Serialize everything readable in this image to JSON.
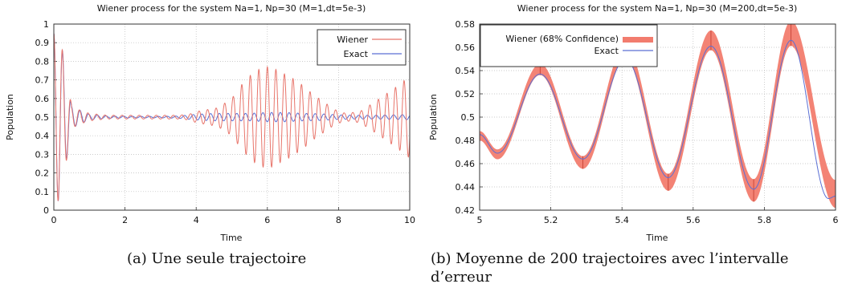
{
  "figure": {
    "caption_a": "(a) Une seule trajectoire",
    "caption_b": "(b) Moyenne de 200 trajectoires avec l’intervalle d’erreur"
  },
  "colors": {
    "wiener": "#e8746a",
    "exact": "#5b6fd4",
    "band": "#f27c6e"
  },
  "chart_data": [
    {
      "type": "line",
      "title": "Wiener process for the system Na=1, Np=30   (M=1,dt=5e-3)",
      "xlabel": "Time",
      "ylabel": "Population",
      "xlim": [
        0,
        10
      ],
      "ylim": [
        0,
        1
      ],
      "xticks": [
        0,
        2,
        4,
        6,
        8,
        10
      ],
      "yticks": [
        0,
        0.1,
        0.2,
        0.3,
        0.4,
        0.5,
        0.6,
        0.7,
        0.8,
        0.9,
        1
      ],
      "grid": true,
      "legend_position": "top-right",
      "series": [
        {
          "name": "Wiener",
          "color": "#e8746a",
          "envelope_points": [
            [
              0.0,
              0.45
            ],
            [
              0.15,
              0.45
            ],
            [
              0.3,
              0.3
            ],
            [
              0.5,
              0.06
            ],
            [
              0.7,
              0.04
            ],
            [
              1.0,
              0.02
            ],
            [
              1.5,
              0.01
            ],
            [
              2.0,
              0.01
            ],
            [
              2.5,
              0.01
            ],
            [
              3.0,
              0.01
            ],
            [
              3.5,
              0.01
            ],
            [
              3.8,
              0.015
            ],
            [
              4.0,
              0.03
            ],
            [
              4.3,
              0.04
            ],
            [
              4.6,
              0.05
            ],
            [
              5.0,
              0.1
            ],
            [
              5.3,
              0.18
            ],
            [
              5.6,
              0.24
            ],
            [
              5.9,
              0.27
            ],
            [
              6.1,
              0.27
            ],
            [
              6.4,
              0.24
            ],
            [
              6.7,
              0.21
            ],
            [
              7.0,
              0.17
            ],
            [
              7.3,
              0.12
            ],
            [
              7.6,
              0.08
            ],
            [
              7.9,
              0.04
            ],
            [
              8.2,
              0.02
            ],
            [
              8.6,
              0.03
            ],
            [
              9.0,
              0.08
            ],
            [
              9.3,
              0.12
            ],
            [
              9.6,
              0.16
            ],
            [
              10.0,
              0.22
            ]
          ],
          "period": 0.24
        },
        {
          "name": "Exact",
          "color": "#5b6fd4",
          "envelope_points": [
            [
              0.0,
              0.45
            ],
            [
              0.15,
              0.45
            ],
            [
              0.3,
              0.3
            ],
            [
              0.5,
              0.06
            ],
            [
              0.7,
              0.04
            ],
            [
              1.0,
              0.015
            ],
            [
              1.5,
              0.006
            ],
            [
              2.0,
              0.005
            ],
            [
              3.0,
              0.004
            ],
            [
              3.5,
              0.006
            ],
            [
              4.0,
              0.015
            ],
            [
              4.5,
              0.02
            ],
            [
              5.0,
              0.02
            ],
            [
              5.5,
              0.02
            ],
            [
              6.0,
              0.025
            ],
            [
              6.5,
              0.025
            ],
            [
              7.0,
              0.02
            ],
            [
              7.5,
              0.018
            ],
            [
              8.0,
              0.012
            ],
            [
              8.5,
              0.01
            ],
            [
              9.0,
              0.01
            ],
            [
              9.5,
              0.012
            ],
            [
              10.0,
              0.014
            ]
          ],
          "period": 0.24
        }
      ]
    },
    {
      "type": "area",
      "title": "Wiener process for the system Na=1, Np=30   (M=200,dt=5e-3)",
      "xlabel": "Time",
      "ylabel": "Population",
      "xlim": [
        5,
        6
      ],
      "ylim": [
        0.42,
        0.58
      ],
      "xticks": [
        5,
        5.2,
        5.4,
        5.6,
        5.8,
        6
      ],
      "yticks": [
        0.42,
        0.44,
        0.46,
        0.48,
        0.5,
        0.52,
        0.54,
        0.56,
        0.58
      ],
      "grid": true,
      "legend_position": "top-left",
      "series": [
        {
          "name": "Wiener (68% Confidence)",
          "color": "#f27c6e",
          "extrema": [
            [
              5.0,
              0.484
            ],
            [
              5.05,
              0.468
            ],
            [
              5.17,
              0.541
            ],
            [
              5.29,
              0.461
            ],
            [
              5.41,
              0.556
            ],
            [
              5.53,
              0.444
            ],
            [
              5.65,
              0.566
            ],
            [
              5.77,
              0.437
            ],
            [
              5.875,
              0.572
            ],
            [
              6.0,
              0.434
            ]
          ],
          "band_halfwidth": [
            [
              5.0,
              0.004
            ],
            [
              5.2,
              0.005
            ],
            [
              5.4,
              0.006
            ],
            [
              5.6,
              0.008
            ],
            [
              5.8,
              0.01
            ],
            [
              6.0,
              0.012
            ]
          ]
        },
        {
          "name": "Exact",
          "color": "#5b6fd4",
          "extrema": [
            [
              5.0,
              0.485
            ],
            [
              5.05,
              0.469
            ],
            [
              5.17,
              0.537
            ],
            [
              5.29,
              0.464
            ],
            [
              5.41,
              0.55
            ],
            [
              5.53,
              0.448
            ],
            [
              5.65,
              0.561
            ],
            [
              5.77,
              0.438
            ],
            [
              5.875,
              0.566
            ],
            [
              5.98,
              0.43
            ],
            [
              6.0,
              0.432
            ]
          ]
        }
      ]
    }
  ]
}
